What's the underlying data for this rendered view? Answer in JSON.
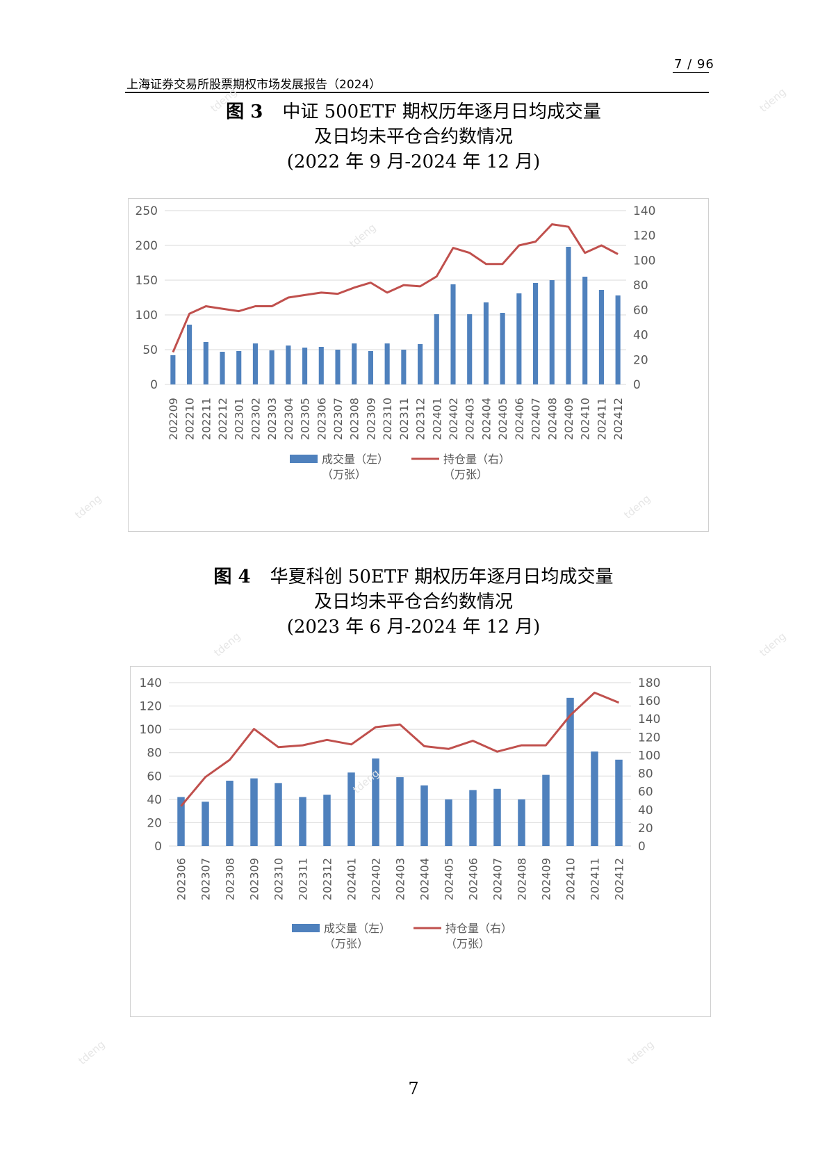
{
  "header": {
    "page_counter": "7 / 96",
    "report_title": "上海证券交易所股票期权市场发展报告（2024）"
  },
  "watermark": "tdeng",
  "figure3": {
    "number": "图 3",
    "title_line1": "中证 500ETF 期权历年逐月日均成交量",
    "title_line2": "及日均未平仓合约数情况",
    "title_line3": "(2022 年 9 月-2024 年 12 月)"
  },
  "figure4": {
    "number": "图 4",
    "title_line1": "华夏科创 50ETF 期权历年逐月日均成交量",
    "title_line2": "及日均未平仓合约数情况",
    "title_line3": "(2023 年 6 月-2024 年 12 月)"
  },
  "footer": {
    "page_number": "7"
  },
  "chart_data": [
    {
      "type": "bar+line",
      "categories": [
        "202209",
        "202210",
        "202211",
        "202212",
        "202301",
        "202302",
        "202303",
        "202304",
        "202305",
        "202306",
        "202307",
        "202308",
        "202309",
        "202310",
        "202311",
        "202312",
        "202401",
        "202402",
        "202403",
        "202404",
        "202405",
        "202406",
        "202407",
        "202408",
        "202409",
        "202410",
        "202411",
        "202412"
      ],
      "series": [
        {
          "name": "成交量（左）（万张）",
          "axis": "left",
          "kind": "bar",
          "color": "#4f81bd",
          "values": [
            42,
            86,
            61,
            47,
            48,
            59,
            49,
            56,
            53,
            54,
            50,
            59,
            48,
            59,
            50,
            58,
            101,
            144,
            101,
            118,
            103,
            131,
            146,
            150,
            198,
            155,
            136,
            128
          ]
        },
        {
          "name": "持仓量（右）（万张）",
          "axis": "right",
          "kind": "line",
          "color": "#c0504d",
          "values": [
            26,
            57,
            63,
            61,
            59,
            63,
            63,
            70,
            72,
            74,
            73,
            78,
            82,
            74,
            80,
            79,
            87,
            110,
            106,
            97,
            97,
            112,
            115,
            129,
            127,
            106,
            112,
            105
          ]
        }
      ],
      "legend": {
        "bar_label_1": "成交量（左）",
        "bar_label_2": "（万张）",
        "line_label_1": "持仓量（右）",
        "line_label_2": "（万张）",
        "position": "bottom"
      },
      "ylim_left": [
        0,
        250
      ],
      "ylim_right": [
        0,
        140
      ],
      "yticks_left": [
        0,
        50,
        100,
        150,
        200,
        250
      ],
      "yticks_right": [
        0,
        20,
        40,
        60,
        80,
        100,
        120,
        140
      ],
      "grid": true
    },
    {
      "type": "bar+line",
      "categories": [
        "202306",
        "202307",
        "202308",
        "202309",
        "202310",
        "202311",
        "202312",
        "202401",
        "202402",
        "202403",
        "202404",
        "202405",
        "202406",
        "202407",
        "202408",
        "202409",
        "202410",
        "202411",
        "202412"
      ],
      "series": [
        {
          "name": "成交量（左）（万张）",
          "axis": "left",
          "kind": "bar",
          "color": "#4f81bd",
          "values": [
            42,
            38,
            56,
            58,
            54,
            42,
            44,
            63,
            75,
            59,
            52,
            40,
            48,
            49,
            40,
            61,
            127,
            81,
            74
          ]
        },
        {
          "name": "持仓量（右）（万张）",
          "axis": "right",
          "kind": "line",
          "color": "#c0504d",
          "values": [
            44,
            76,
            95,
            129,
            109,
            111,
            117,
            112,
            131,
            134,
            110,
            107,
            116,
            104,
            111,
            111,
            144,
            169,
            158
          ]
        }
      ],
      "legend": {
        "bar_label_1": "成交量（左）",
        "bar_label_2": "（万张）",
        "line_label_1": "持仓量（右）",
        "line_label_2": "（万张）",
        "position": "bottom"
      },
      "ylim_left": [
        0,
        140
      ],
      "ylim_right": [
        0,
        180
      ],
      "yticks_left": [
        0,
        20,
        40,
        60,
        80,
        100,
        120,
        140
      ],
      "yticks_right": [
        0,
        20,
        40,
        60,
        80,
        100,
        120,
        140,
        160,
        180
      ],
      "grid": true
    }
  ]
}
